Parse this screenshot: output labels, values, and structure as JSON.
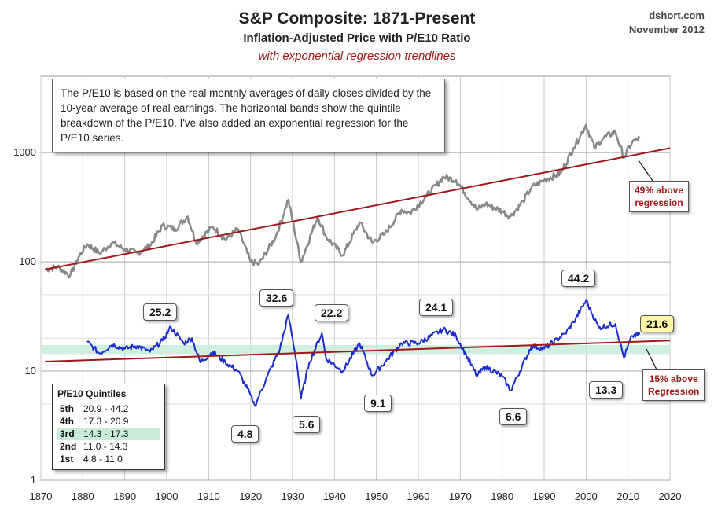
{
  "titles": {
    "main": "S&P Composite: 1871-Present",
    "sub": "Inflation-Adjusted Price with P/E10 Ratio",
    "trend": "with exponential regression trendlines"
  },
  "credit": {
    "site": "dshort.com",
    "date": "November 2012"
  },
  "note": "The P/E10 is based on the real monthly averages of daily closes divided by the 10-year average of real earnings. The horizontal bands show the quintile breakdown of the P/E10. I've also added an exponential regression for the P/E10 series.",
  "quintiles": {
    "title": "P/E10 Quintiles",
    "rows": [
      {
        "name": "5th",
        "range": "20.9 - 44.2"
      },
      {
        "name": "4th",
        "range": "17.3 - 20.9"
      },
      {
        "name": "3rd",
        "range": "14.3 - 17.3"
      },
      {
        "name": "2nd",
        "range": "11.0 - 14.3"
      },
      {
        "name": "1st",
        "range": "4.8 - 11.0"
      }
    ]
  },
  "callouts": {
    "pe_1901": "25.2",
    "pe_1920": "4.8",
    "pe_1929": "32.6",
    "pe_1932": "5.6",
    "pe_1937": "22.2",
    "pe_1949": "9.1",
    "pe_1966": "24.1",
    "pe_1982": "6.6",
    "pe_2000": "44.2",
    "pe_2009": "13.3",
    "pe_current": "21.6"
  },
  "regression_notes": {
    "price_line1": "49% above",
    "price_line2": "regression",
    "pe_line1": "15% above",
    "pe_line2": "Regression"
  },
  "colors": {
    "price": "#888888",
    "pe": "#1a2ccc",
    "regression": "#a01818",
    "band": "#c8ecd8",
    "grid": "#c8c8c8"
  },
  "chart_data": {
    "type": "line",
    "title": "S&P Composite: 1871-Present",
    "subtitle": "Inflation-Adjusted Price with P/E10 Ratio",
    "y_scale": "log",
    "ylim": [
      1,
      5000
    ],
    "xlim": [
      1870,
      2020
    ],
    "x_ticks": [
      "1870",
      "1880",
      "1890",
      "1900",
      "1910",
      "1920",
      "1930",
      "1940",
      "1950",
      "1960",
      "1970",
      "1980",
      "1990",
      "2000",
      "2010",
      "2020"
    ],
    "y_ticks": [
      "1",
      "10",
      "100",
      "1000"
    ],
    "grid": true,
    "series": [
      {
        "name": "Inflation-Adjusted Price",
        "x": [
          1871,
          1874,
          1877,
          1879,
          1881,
          1884,
          1887,
          1890,
          1893,
          1896,
          1899,
          1902,
          1905,
          1907,
          1911,
          1914,
          1917,
          1920,
          1922,
          1926,
          1929,
          1932,
          1936,
          1938,
          1942,
          1946,
          1949,
          1952,
          1956,
          1958,
          1962,
          1966,
          1969,
          1974,
          1976,
          1980,
          1982,
          1985,
          1987,
          1990,
          1994,
          1997,
          2000,
          2002,
          2004,
          2007,
          2009,
          2011,
          2012.8
        ],
        "y": [
          85,
          90,
          75,
          110,
          145,
          120,
          150,
          130,
          120,
          140,
          215,
          200,
          260,
          150,
          210,
          160,
          200,
          100,
          95,
          170,
          370,
          100,
          260,
          170,
          115,
          230,
          150,
          180,
          300,
          280,
          400,
          600,
          560,
          300,
          340,
          290,
          260,
          360,
          480,
          560,
          650,
          1100,
          1800,
          1100,
          1350,
          1550,
          900,
          1250,
          1350
        ]
      },
      {
        "name": "P/E10",
        "x": [
          1881,
          1884,
          1887,
          1890,
          1893,
          1896,
          1899,
          1901,
          1904,
          1906,
          1908,
          1911,
          1914,
          1917,
          1920,
          1921,
          1924,
          1927,
          1929,
          1931,
          1932,
          1934,
          1937,
          1938,
          1942,
          1946,
          1949,
          1952,
          1956,
          1960,
          1966,
          1969,
          1974,
          1976,
          1980,
          1982,
          1987,
          1990,
          1995,
          1997,
          2000,
          2003,
          2007,
          2009,
          2011,
          2012.8
        ],
        "y": [
          18.5,
          14.5,
          17.5,
          16,
          17,
          15,
          19,
          25.2,
          18,
          20,
          12,
          15,
          12,
          10,
          6,
          4.8,
          9,
          16,
          32.6,
          12,
          5.6,
          12,
          22.2,
          13,
          10,
          18,
          9.1,
          12,
          18,
          18,
          24.1,
          21,
          9,
          11,
          9,
          6.6,
          17,
          16,
          22,
          28,
          44.2,
          25,
          27,
          13.3,
          21,
          21.6
        ]
      },
      {
        "name": "Price regression",
        "x": [
          1871,
          2020
        ],
        "y": [
          85,
          1100
        ]
      },
      {
        "name": "P/E10 regression",
        "x": [
          1871,
          2020
        ],
        "y": [
          12.2,
          19
        ]
      }
    ],
    "bands": [
      {
        "name": "3rd quintile",
        "range": [
          14.3,
          17.3
        ]
      }
    ],
    "annotations": [
      "25.2",
      "4.8",
      "32.6",
      "5.6",
      "22.2",
      "9.1",
      "24.1",
      "6.6",
      "44.2",
      "13.3",
      "21.6",
      "49% above regression",
      "15% above Regression"
    ]
  }
}
